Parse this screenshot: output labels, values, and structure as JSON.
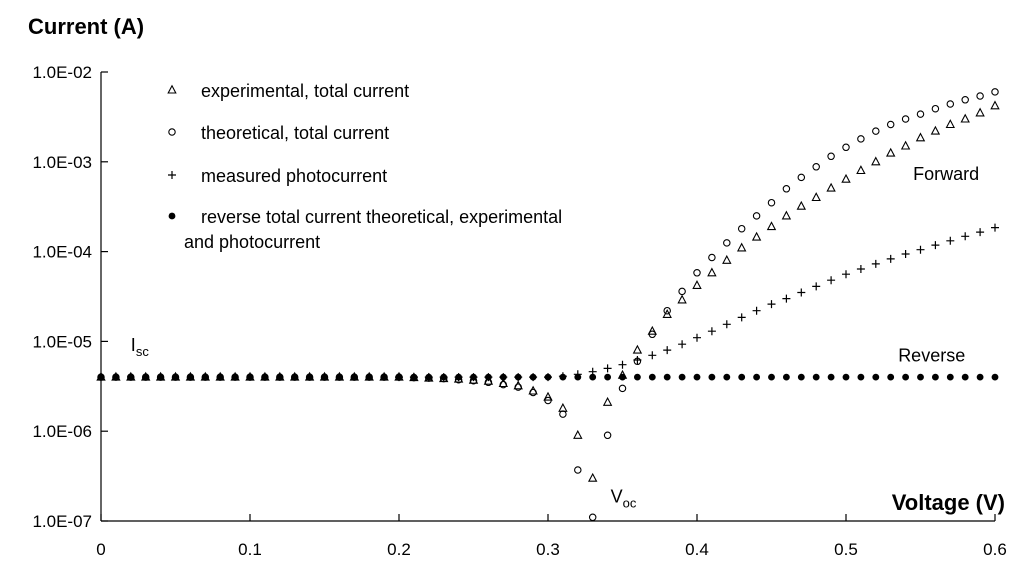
{
  "chart_data": {
    "type": "scatter",
    "title": "",
    "xlabel": "Voltage (V)",
    "ylabel": "Current (A)",
    "xlim": [
      0,
      0.6
    ],
    "ylim": [
      1e-07,
      0.01
    ],
    "yscale": "log",
    "x_ticks": [
      "0",
      "0.1",
      "0.2",
      "0.3",
      "0.4",
      "0.5",
      "0.6"
    ],
    "y_ticks": [
      "1.0E-07",
      "1.0E-06",
      "1.0E-05",
      "1.0E-04",
      "1.0E-03",
      "1.0E-02"
    ],
    "grid": false,
    "legend_position": "top-left",
    "series": [
      {
        "name": "experimental, total current",
        "marker": "triangle",
        "points": [
          [
            0.0,
            4e-06
          ],
          [
            0.01,
            4e-06
          ],
          [
            0.02,
            4e-06
          ],
          [
            0.03,
            4e-06
          ],
          [
            0.04,
            4e-06
          ],
          [
            0.05,
            4e-06
          ],
          [
            0.06,
            4e-06
          ],
          [
            0.07,
            4e-06
          ],
          [
            0.08,
            4e-06
          ],
          [
            0.09,
            4e-06
          ],
          [
            0.1,
            4e-06
          ],
          [
            0.11,
            4e-06
          ],
          [
            0.12,
            4e-06
          ],
          [
            0.13,
            4e-06
          ],
          [
            0.14,
            4e-06
          ],
          [
            0.15,
            4e-06
          ],
          [
            0.16,
            4e-06
          ],
          [
            0.17,
            4e-06
          ],
          [
            0.18,
            4e-06
          ],
          [
            0.19,
            4e-06
          ],
          [
            0.2,
            4e-06
          ],
          [
            0.21,
            3.95e-06
          ],
          [
            0.22,
            3.9e-06
          ],
          [
            0.23,
            3.85e-06
          ],
          [
            0.24,
            3.8e-06
          ],
          [
            0.25,
            3.7e-06
          ],
          [
            0.26,
            3.6e-06
          ],
          [
            0.27,
            3.4e-06
          ],
          [
            0.28,
            3.2e-06
          ],
          [
            0.29,
            2.8e-06
          ],
          [
            0.3,
            2.4e-06
          ],
          [
            0.31,
            1.8e-06
          ],
          [
            0.32,
            9e-07
          ],
          [
            0.33,
            3e-07
          ],
          [
            0.34,
            2.1e-06
          ],
          [
            0.35,
            4.2e-06
          ],
          [
            0.36,
            8e-06
          ],
          [
            0.37,
            1.3e-05
          ],
          [
            0.38,
            2e-05
          ],
          [
            0.39,
            2.9e-05
          ],
          [
            0.4,
            4.2e-05
          ],
          [
            0.41,
            5.8e-05
          ],
          [
            0.42,
            8e-05
          ],
          [
            0.43,
            0.00011
          ],
          [
            0.44,
            0.000145
          ],
          [
            0.45,
            0.00019
          ],
          [
            0.46,
            0.00025
          ],
          [
            0.47,
            0.00032
          ],
          [
            0.48,
            0.0004
          ],
          [
            0.49,
            0.00051
          ],
          [
            0.5,
            0.00064
          ],
          [
            0.51,
            0.0008
          ],
          [
            0.52,
            0.001
          ],
          [
            0.53,
            0.00125
          ],
          [
            0.54,
            0.0015
          ],
          [
            0.55,
            0.00185
          ],
          [
            0.56,
            0.0022
          ],
          [
            0.57,
            0.0026
          ],
          [
            0.58,
            0.003
          ],
          [
            0.59,
            0.0035
          ],
          [
            0.6,
            0.0042
          ]
        ]
      },
      {
        "name": "theoretical, total current",
        "marker": "circle-open",
        "points": [
          [
            0.0,
            4e-06
          ],
          [
            0.01,
            4e-06
          ],
          [
            0.02,
            4e-06
          ],
          [
            0.03,
            4e-06
          ],
          [
            0.04,
            4e-06
          ],
          [
            0.05,
            4e-06
          ],
          [
            0.06,
            4e-06
          ],
          [
            0.07,
            4e-06
          ],
          [
            0.08,
            4e-06
          ],
          [
            0.09,
            4e-06
          ],
          [
            0.1,
            4e-06
          ],
          [
            0.11,
            4e-06
          ],
          [
            0.12,
            4e-06
          ],
          [
            0.13,
            4e-06
          ],
          [
            0.14,
            4e-06
          ],
          [
            0.15,
            4e-06
          ],
          [
            0.16,
            4e-06
          ],
          [
            0.17,
            4e-06
          ],
          [
            0.18,
            4e-06
          ],
          [
            0.19,
            4e-06
          ],
          [
            0.2,
            4e-06
          ],
          [
            0.21,
            3.95e-06
          ],
          [
            0.22,
            3.9e-06
          ],
          [
            0.23,
            3.85e-06
          ],
          [
            0.24,
            3.75e-06
          ],
          [
            0.25,
            3.65e-06
          ],
          [
            0.26,
            3.5e-06
          ],
          [
            0.27,
            3.3e-06
          ],
          [
            0.28,
            3.1e-06
          ],
          [
            0.29,
            2.7e-06
          ],
          [
            0.3,
            2.2e-06
          ],
          [
            0.31,
            1.55e-06
          ],
          [
            0.32,
            3.7e-07
          ],
          [
            0.33,
            1.1e-07
          ],
          [
            0.34,
            9e-07
          ],
          [
            0.35,
            3e-06
          ],
          [
            0.36,
            6e-06
          ],
          [
            0.37,
            1.2e-05
          ],
          [
            0.38,
            2.2e-05
          ],
          [
            0.39,
            3.6e-05
          ],
          [
            0.4,
            5.8e-05
          ],
          [
            0.41,
            8.6e-05
          ],
          [
            0.42,
            0.000125
          ],
          [
            0.43,
            0.00018
          ],
          [
            0.44,
            0.00025
          ],
          [
            0.45,
            0.00035
          ],
          [
            0.46,
            0.0005
          ],
          [
            0.47,
            0.00067
          ],
          [
            0.48,
            0.00088
          ],
          [
            0.49,
            0.00115
          ],
          [
            0.5,
            0.00145
          ],
          [
            0.51,
            0.0018
          ],
          [
            0.52,
            0.0022
          ],
          [
            0.53,
            0.0026
          ],
          [
            0.54,
            0.003
          ],
          [
            0.55,
            0.0034
          ],
          [
            0.56,
            0.0039
          ],
          [
            0.57,
            0.0044
          ],
          [
            0.58,
            0.0049
          ],
          [
            0.59,
            0.0054
          ],
          [
            0.6,
            0.006
          ]
        ]
      },
      {
        "name": "measured photocurrent",
        "marker": "plus",
        "points": [
          [
            0.2,
            4e-06
          ],
          [
            0.21,
            4e-06
          ],
          [
            0.22,
            4e-06
          ],
          [
            0.23,
            4e-06
          ],
          [
            0.24,
            4e-06
          ],
          [
            0.25,
            4e-06
          ],
          [
            0.26,
            4e-06
          ],
          [
            0.27,
            4e-06
          ],
          [
            0.28,
            4e-06
          ],
          [
            0.29,
            4e-06
          ],
          [
            0.3,
            4e-06
          ],
          [
            0.31,
            4.1e-06
          ],
          [
            0.32,
            4.3e-06
          ],
          [
            0.33,
            4.6e-06
          ],
          [
            0.34,
            5e-06
          ],
          [
            0.35,
            5.5e-06
          ],
          [
            0.36,
            6.2e-06
          ],
          [
            0.37,
            7e-06
          ],
          [
            0.38,
            8e-06
          ],
          [
            0.39,
            9.3e-06
          ],
          [
            0.4,
            1.1e-05
          ],
          [
            0.41,
            1.3e-05
          ],
          [
            0.42,
            1.55e-05
          ],
          [
            0.43,
            1.85e-05
          ],
          [
            0.44,
            2.2e-05
          ],
          [
            0.45,
            2.6e-05
          ],
          [
            0.46,
            3e-05
          ],
          [
            0.47,
            3.5e-05
          ],
          [
            0.48,
            4.1e-05
          ],
          [
            0.49,
            4.8e-05
          ],
          [
            0.5,
            5.6e-05
          ],
          [
            0.51,
            6.4e-05
          ],
          [
            0.52,
            7.3e-05
          ],
          [
            0.53,
            8.3e-05
          ],
          [
            0.54,
            9.4e-05
          ],
          [
            0.55,
            0.000105
          ],
          [
            0.56,
            0.000118
          ],
          [
            0.57,
            0.000132
          ],
          [
            0.58,
            0.000148
          ],
          [
            0.59,
            0.000165
          ],
          [
            0.6,
            0.000185
          ]
        ]
      },
      {
        "name": "reverse total current theoretical, experimental and photocurrent",
        "name_lines": [
          "reverse total current theoretical, experimental",
          "and photocurrent"
        ],
        "marker": "circle-filled",
        "points": [
          [
            0.0,
            4e-06
          ],
          [
            0.01,
            4e-06
          ],
          [
            0.02,
            4e-06
          ],
          [
            0.03,
            4e-06
          ],
          [
            0.04,
            4e-06
          ],
          [
            0.05,
            4e-06
          ],
          [
            0.06,
            4e-06
          ],
          [
            0.07,
            4e-06
          ],
          [
            0.08,
            4e-06
          ],
          [
            0.09,
            4e-06
          ],
          [
            0.1,
            4e-06
          ],
          [
            0.11,
            4e-06
          ],
          [
            0.12,
            4e-06
          ],
          [
            0.13,
            4e-06
          ],
          [
            0.14,
            4e-06
          ],
          [
            0.15,
            4e-06
          ],
          [
            0.16,
            4e-06
          ],
          [
            0.17,
            4e-06
          ],
          [
            0.18,
            4e-06
          ],
          [
            0.19,
            4e-06
          ],
          [
            0.2,
            4e-06
          ],
          [
            0.21,
            4e-06
          ],
          [
            0.22,
            4e-06
          ],
          [
            0.23,
            4e-06
          ],
          [
            0.24,
            4e-06
          ],
          [
            0.25,
            4e-06
          ],
          [
            0.26,
            4e-06
          ],
          [
            0.27,
            4e-06
          ],
          [
            0.28,
            4e-06
          ],
          [
            0.29,
            4e-06
          ],
          [
            0.3,
            4e-06
          ],
          [
            0.31,
            4e-06
          ],
          [
            0.32,
            4e-06
          ],
          [
            0.33,
            4e-06
          ],
          [
            0.34,
            4e-06
          ],
          [
            0.35,
            4e-06
          ],
          [
            0.36,
            4e-06
          ],
          [
            0.37,
            4e-06
          ],
          [
            0.38,
            4e-06
          ],
          [
            0.39,
            4e-06
          ],
          [
            0.4,
            4e-06
          ],
          [
            0.41,
            4e-06
          ],
          [
            0.42,
            4e-06
          ],
          [
            0.43,
            4e-06
          ],
          [
            0.44,
            4e-06
          ],
          [
            0.45,
            4e-06
          ],
          [
            0.46,
            4e-06
          ],
          [
            0.47,
            4e-06
          ],
          [
            0.48,
            4e-06
          ],
          [
            0.49,
            4e-06
          ],
          [
            0.5,
            4e-06
          ],
          [
            0.51,
            4e-06
          ],
          [
            0.52,
            4e-06
          ],
          [
            0.53,
            4e-06
          ],
          [
            0.54,
            4e-06
          ],
          [
            0.55,
            4e-06
          ],
          [
            0.56,
            4e-06
          ],
          [
            0.57,
            4e-06
          ],
          [
            0.58,
            4e-06
          ],
          [
            0.59,
            4e-06
          ],
          [
            0.6,
            4e-06
          ]
        ]
      }
    ],
    "annotations": [
      {
        "name": "forward",
        "text": "Forward",
        "x": 0.545,
        "y": 0.00063
      },
      {
        "name": "reverse",
        "text": "Reverse",
        "x": 0.535,
        "y": 6e-06
      },
      {
        "name": "isc",
        "text": "I",
        "sub": "sc",
        "x": 0.02,
        "y": 7.8e-06
      },
      {
        "name": "voc",
        "text": "V",
        "sub": "oc",
        "x": 0.342,
        "y": 1.6e-07
      }
    ]
  }
}
